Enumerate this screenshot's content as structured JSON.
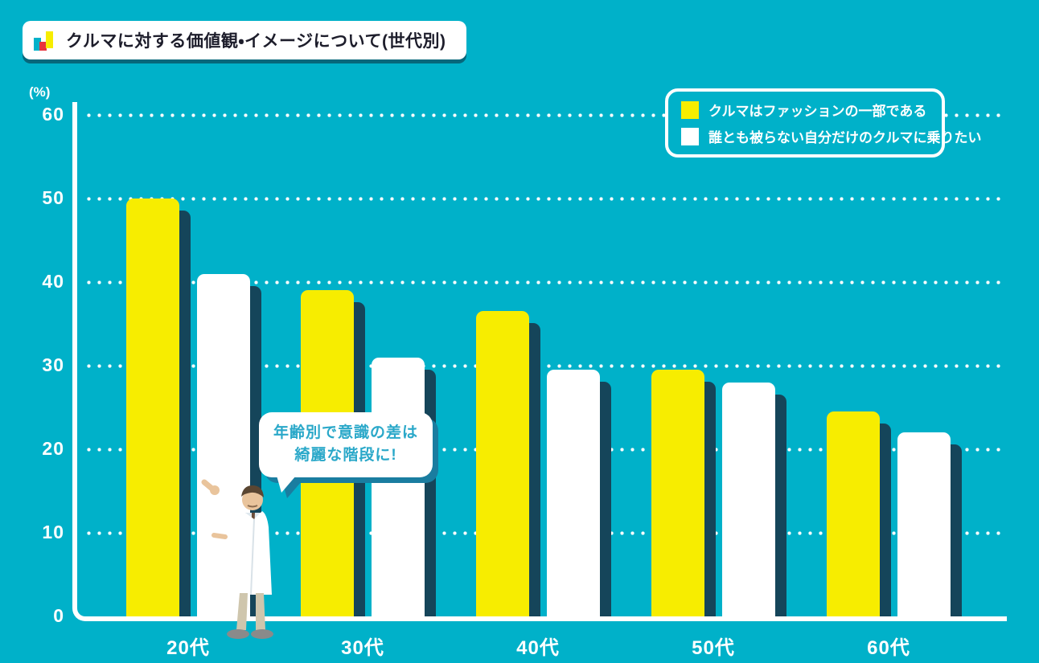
{
  "header": {
    "title": "クルマに対する価値観・イメージについて(世代別)",
    "icon": "mini-bar-chart-icon"
  },
  "legend": {
    "items": [
      {
        "label": "クルマはファッションの一部である",
        "color": "#f7ed00"
      },
      {
        "label": "誰とも被らない自分だけのクルマに乗りたい",
        "color": "#ffffff"
      }
    ]
  },
  "callout": {
    "line1": "年齢別で意識の差は",
    "line2": "綺麗な階段に!"
  },
  "axis": {
    "unit_label": "(%)",
    "y_ticks": [
      60,
      50,
      40,
      30,
      20,
      10,
      0
    ]
  },
  "chart_data": {
    "type": "bar",
    "title": "クルマに対する価値観・イメージについて(世代別)",
    "categories": [
      "20代",
      "30代",
      "40代",
      "50代",
      "60代"
    ],
    "series": [
      {
        "name": "クルマはファッションの一部である",
        "color": "#f7ed00",
        "values": [
          50,
          39,
          36.5,
          29.5,
          24.5
        ]
      },
      {
        "name": "誰とも被らない自分だけのクルマに乗りたい",
        "color": "#ffffff",
        "values": [
          41,
          31,
          29.5,
          28,
          22
        ]
      }
    ],
    "ylabel": "(%)",
    "ylim": [
      0,
      60
    ],
    "grid": "dotted-horizontal-white",
    "legend_position": "top-right",
    "annotation": "年齢別で意識の差は綺麗な階段に!"
  },
  "colors": {
    "background": "#00b1c9",
    "bar_yellow": "#f7ed00",
    "bar_white": "#ffffff",
    "bar_shadow": "#15455a",
    "bubble_shadow": "#1a7da0",
    "bubble_text": "#2aa8c9",
    "title_text": "#1d1d2b",
    "icon_red": "#e8333d"
  }
}
